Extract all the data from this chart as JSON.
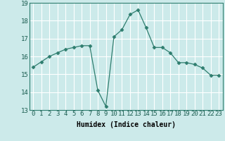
{
  "x": [
    0,
    1,
    2,
    3,
    4,
    5,
    6,
    7,
    8,
    9,
    10,
    11,
    12,
    13,
    14,
    15,
    16,
    17,
    18,
    19,
    20,
    21,
    22,
    23
  ],
  "y": [
    15.4,
    15.7,
    16.0,
    16.2,
    16.4,
    16.5,
    16.6,
    16.6,
    14.1,
    13.2,
    17.1,
    17.5,
    18.35,
    18.6,
    17.6,
    16.5,
    16.5,
    16.2,
    15.65,
    15.65,
    15.55,
    15.35,
    14.95,
    14.95
  ],
  "line_color": "#2e7d6e",
  "marker": "D",
  "marker_size": 2.5,
  "bg_color": "#cceaea",
  "grid_color": "#ffffff",
  "xlabel": "Humidex (Indice chaleur)",
  "ylim": [
    13,
    19
  ],
  "xlim_min": -0.5,
  "xlim_max": 23.5,
  "yticks": [
    13,
    14,
    15,
    16,
    17,
    18,
    19
  ],
  "xticks": [
    0,
    1,
    2,
    3,
    4,
    5,
    6,
    7,
    8,
    9,
    10,
    11,
    12,
    13,
    14,
    15,
    16,
    17,
    18,
    19,
    20,
    21,
    22,
    23
  ],
  "label_fontsize": 7,
  "tick_fontsize": 6.5
}
